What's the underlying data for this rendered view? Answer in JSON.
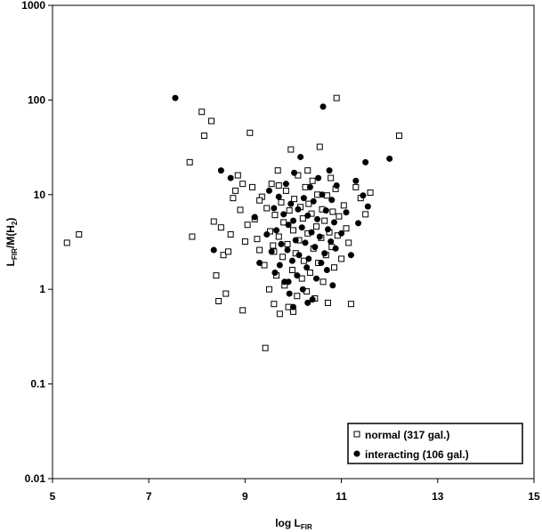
{
  "chart_data": {
    "type": "scatter",
    "xlabel": "log L",
    "xlabel_sub": "FIR",
    "ylabel_main": "L",
    "ylabel_sub": "FIR",
    "ylabel_rest": "/M(H",
    "ylabel_sub2": "2",
    "ylabel_end": ")",
    "x_scale": "linear",
    "y_scale": "log",
    "xlim": [
      5,
      15
    ],
    "ylim": [
      0.01,
      1000
    ],
    "x_ticks": [
      5,
      7,
      9,
      11,
      13,
      15
    ],
    "x_tick_labels": [
      "5",
      "7",
      "9",
      "11",
      "13",
      "15"
    ],
    "y_ticks": [
      0.01,
      0.1,
      1,
      10,
      100,
      1000
    ],
    "y_tick_labels": [
      "0.01",
      "0.1",
      "1",
      "10",
      "100",
      "1000"
    ],
    "grid": false,
    "legend_position": "bottom-right",
    "series": [
      {
        "name": "normal (317 gal.)",
        "marker": "open-square",
        "color": "#000000",
        "points": [
          [
            5.3,
            3.1
          ],
          [
            5.55,
            3.8
          ],
          [
            7.85,
            22
          ],
          [
            7.9,
            3.6
          ],
          [
            8.1,
            75
          ],
          [
            8.15,
            42
          ],
          [
            8.3,
            60
          ],
          [
            8.35,
            5.2
          ],
          [
            8.4,
            1.4
          ],
          [
            8.45,
            0.75
          ],
          [
            8.5,
            4.5
          ],
          [
            8.55,
            2.3
          ],
          [
            8.6,
            0.9
          ],
          [
            8.65,
            2.5
          ],
          [
            8.7,
            3.8
          ],
          [
            8.75,
            9.2
          ],
          [
            8.8,
            11
          ],
          [
            8.85,
            16
          ],
          [
            8.9,
            6.9
          ],
          [
            8.95,
            0.6
          ],
          [
            9.0,
            3.2
          ],
          [
            9.05,
            4.8
          ],
          [
            9.1,
            45
          ],
          [
            9.15,
            12
          ],
          [
            9.2,
            5.5
          ],
          [
            9.25,
            3.4
          ],
          [
            9.3,
            2.6
          ],
          [
            9.35,
            9.5
          ],
          [
            9.4,
            1.8
          ],
          [
            9.42,
            0.24
          ],
          [
            9.45,
            7.2
          ],
          [
            9.5,
            1.0
          ],
          [
            9.52,
            4.1
          ],
          [
            9.55,
            13
          ],
          [
            9.58,
            2.9
          ],
          [
            9.6,
            0.7
          ],
          [
            9.62,
            6.1
          ],
          [
            9.65,
            1.4
          ],
          [
            9.68,
            18
          ],
          [
            9.7,
            3.6
          ],
          [
            9.72,
            0.55
          ],
          [
            9.75,
            8.3
          ],
          [
            9.78,
            2.2
          ],
          [
            9.8,
            5.1
          ],
          [
            9.82,
            1.1
          ],
          [
            9.85,
            11
          ],
          [
            9.88,
            3.0
          ],
          [
            9.9,
            0.65
          ],
          [
            9.92,
            6.8
          ],
          [
            9.95,
            30
          ],
          [
            9.98,
            1.6
          ],
          [
            10.0,
            4.2
          ],
          [
            10.02,
            9.0
          ],
          [
            10.05,
            2.4
          ],
          [
            10.08,
            0.85
          ],
          [
            10.1,
            16
          ],
          [
            10.12,
            3.3
          ],
          [
            10.15,
            7.4
          ],
          [
            10.18,
            1.3
          ],
          [
            10.2,
            5.6
          ],
          [
            10.22,
            2.0
          ],
          [
            10.25,
            12
          ],
          [
            10.28,
            0.95
          ],
          [
            10.3,
            3.9
          ],
          [
            10.32,
            8.0
          ],
          [
            10.35,
            1.5
          ],
          [
            10.38,
            6.3
          ],
          [
            10.4,
            14
          ],
          [
            10.42,
            2.7
          ],
          [
            10.45,
            0.8
          ],
          [
            10.48,
            4.6
          ],
          [
            10.5,
            10
          ],
          [
            10.52,
            1.9
          ],
          [
            10.55,
            32
          ],
          [
            10.58,
            3.5
          ],
          [
            10.6,
            7.0
          ],
          [
            10.62,
            1.2
          ],
          [
            10.65,
            5.3
          ],
          [
            10.68,
            2.3
          ],
          [
            10.7,
            9.8
          ],
          [
            10.72,
            0.72
          ],
          [
            10.75,
            4.0
          ],
          [
            10.78,
            15
          ],
          [
            10.8,
            2.8
          ],
          [
            10.82,
            6.6
          ],
          [
            10.85,
            1.7
          ],
          [
            10.88,
            11.5
          ],
          [
            10.9,
            105
          ],
          [
            10.92,
            3.7
          ],
          [
            10.95,
            5.9
          ],
          [
            11.0,
            2.1
          ],
          [
            11.05,
            7.7
          ],
          [
            11.1,
            4.4
          ],
          [
            11.15,
            3.1
          ],
          [
            11.2,
            0.7
          ],
          [
            11.3,
            12
          ],
          [
            11.4,
            9.2
          ],
          [
            11.5,
            6.2
          ],
          [
            11.6,
            10.5
          ],
          [
            12.2,
            42
          ],
          [
            9.3,
            8.7
          ],
          [
            9.7,
            12.5
          ],
          [
            10.0,
            0.58
          ],
          [
            10.3,
            18
          ],
          [
            9.6,
            2.5
          ],
          [
            8.95,
            13
          ]
        ]
      },
      {
        "name": "interacting (106 gal.)",
        "marker": "filled-circle",
        "color": "#000000",
        "points": [
          [
            7.55,
            105
          ],
          [
            8.35,
            2.6
          ],
          [
            8.5,
            18
          ],
          [
            8.7,
            15
          ],
          [
            9.2,
            5.8
          ],
          [
            9.3,
            1.9
          ],
          [
            9.45,
            3.8
          ],
          [
            9.5,
            11
          ],
          [
            9.55,
            2.5
          ],
          [
            9.6,
            7.2
          ],
          [
            9.62,
            1.5
          ],
          [
            9.65,
            4.2
          ],
          [
            9.7,
            9.5
          ],
          [
            9.72,
            1.8
          ],
          [
            9.75,
            3.0
          ],
          [
            9.8,
            6.2
          ],
          [
            9.82,
            1.2
          ],
          [
            9.85,
            13
          ],
          [
            9.88,
            2.6
          ],
          [
            9.9,
            4.8
          ],
          [
            9.92,
            0.9
          ],
          [
            9.95,
            8.0
          ],
          [
            9.98,
            2.0
          ],
          [
            10.0,
            5.3
          ],
          [
            10.02,
            17
          ],
          [
            10.05,
            3.3
          ],
          [
            10.08,
            1.4
          ],
          [
            10.1,
            7.0
          ],
          [
            10.12,
            2.3
          ],
          [
            10.15,
            25
          ],
          [
            10.18,
            4.5
          ],
          [
            10.2,
            1.0
          ],
          [
            10.22,
            9.2
          ],
          [
            10.25,
            3.1
          ],
          [
            10.28,
            1.7
          ],
          [
            10.3,
            6.0
          ],
          [
            10.32,
            2.1
          ],
          [
            10.35,
            12
          ],
          [
            10.38,
            4.0
          ],
          [
            10.4,
            0.78
          ],
          [
            10.42,
            8.5
          ],
          [
            10.45,
            2.8
          ],
          [
            10.48,
            1.3
          ],
          [
            10.5,
            5.5
          ],
          [
            10.52,
            15
          ],
          [
            10.55,
            3.6
          ],
          [
            10.58,
            1.9
          ],
          [
            10.6,
            10
          ],
          [
            10.62,
            85
          ],
          [
            10.65,
            2.4
          ],
          [
            10.68,
            6.8
          ],
          [
            10.7,
            1.6
          ],
          [
            10.72,
            4.3
          ],
          [
            10.75,
            18
          ],
          [
            10.78,
            3.2
          ],
          [
            10.8,
            8.8
          ],
          [
            10.82,
            1.1
          ],
          [
            10.85,
            5.1
          ],
          [
            10.88,
            2.7
          ],
          [
            10.9,
            12.5
          ],
          [
            11.0,
            3.9
          ],
          [
            11.1,
            6.5
          ],
          [
            11.2,
            2.3
          ],
          [
            11.3,
            14
          ],
          [
            11.35,
            5.0
          ],
          [
            11.45,
            9.8
          ],
          [
            11.5,
            22
          ],
          [
            11.55,
            7.5
          ],
          [
            12.0,
            24
          ],
          [
            10.0,
            0.65
          ],
          [
            10.3,
            0.72
          ],
          [
            9.9,
            1.2
          ]
        ]
      }
    ]
  }
}
